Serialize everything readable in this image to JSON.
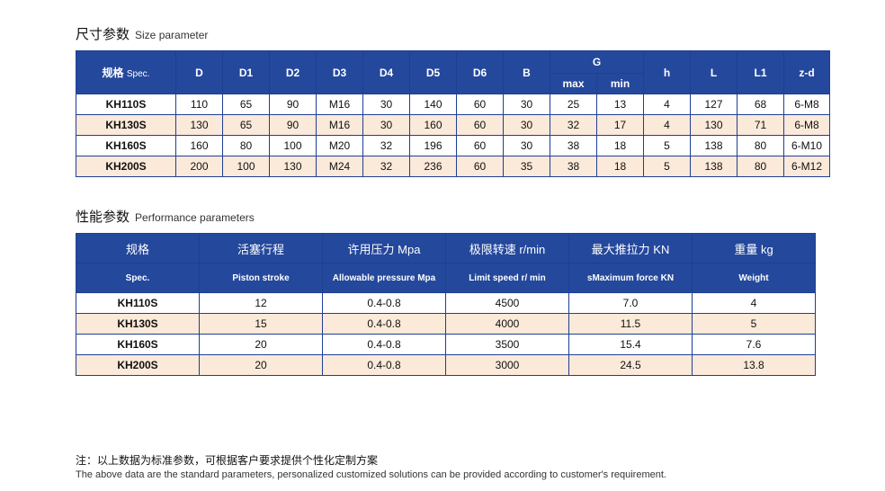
{
  "size_section": {
    "title_cn": "尺寸参数",
    "title_en": "Size parameter",
    "headers": {
      "spec_cn": "规格",
      "spec_en": "Spec.",
      "D": "D",
      "D1": "D1",
      "D2": "D2",
      "D3": "D3",
      "D4": "D4",
      "D5": "D5",
      "D6": "D6",
      "B": "B",
      "G": "G",
      "G_max": "max",
      "G_min": "min",
      "h": "h",
      "L": "L",
      "L1": "L1",
      "zd": "z-d"
    },
    "rows": [
      [
        "KH110S",
        "110",
        "65",
        "90",
        "M16",
        "30",
        "140",
        "60",
        "30",
        "25",
        "13",
        "4",
        "127",
        "68",
        "6-M8"
      ],
      [
        "KH130S",
        "130",
        "65",
        "90",
        "M16",
        "30",
        "160",
        "60",
        "30",
        "32",
        "17",
        "4",
        "130",
        "71",
        "6-M8"
      ],
      [
        "KH160S",
        "160",
        "80",
        "100",
        "M20",
        "32",
        "196",
        "60",
        "30",
        "38",
        "18",
        "5",
        "138",
        "80",
        "6-M10"
      ],
      [
        "KH200S",
        "200",
        "100",
        "130",
        "M24",
        "32",
        "236",
        "60",
        "35",
        "38",
        "18",
        "5",
        "138",
        "80",
        "6-M12"
      ]
    ]
  },
  "performance_section": {
    "title_cn": "性能参数",
    "title_en": "Performance parameters",
    "headers_cn": [
      "规格",
      "活塞行程",
      "许用压力 Mpa",
      "极限转速 r/min",
      "最大推拉力 KN",
      "重量 kg"
    ],
    "headers_en": [
      "Spec.",
      "Piston stroke",
      "Allowable pressure Mpa",
      "Limit speed r/ min",
      "sMaximum force  KN",
      "Weight"
    ],
    "rows": [
      [
        "KH110S",
        "12",
        "0.4-0.8",
        "4500",
        "7.0",
        "4"
      ],
      [
        "KH130S",
        "15",
        "0.4-0.8",
        "4000",
        "11.5",
        "5"
      ],
      [
        "KH160S",
        "20",
        "0.4-0.8",
        "3500",
        "15.4",
        "7.6"
      ],
      [
        "KH200S",
        "20",
        "0.4-0.8",
        "3000",
        "24.5",
        "13.8"
      ]
    ]
  },
  "footnote": {
    "cn": "注：以上数据为标准参数，可根据客户要求提供个性化定制方案",
    "en": "The above data are the standard parameters, personalized customized solutions can be provided according to customer's requirement."
  },
  "colors": {
    "header_bg": "#24489c",
    "row_alt_bg": "#fbe9d9"
  }
}
